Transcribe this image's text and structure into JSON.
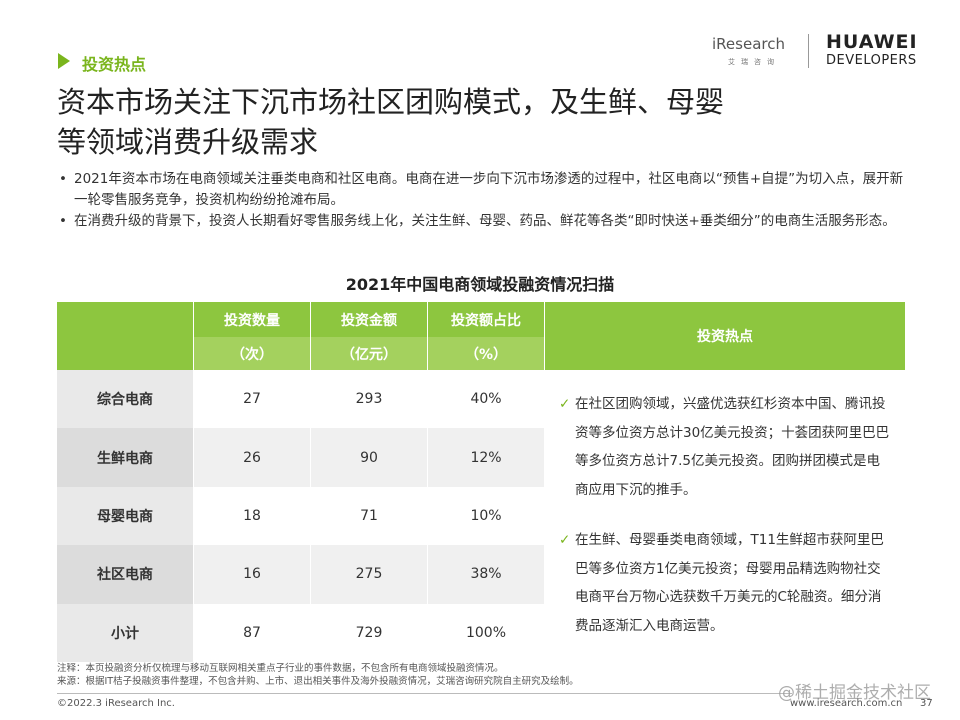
{
  "header": {
    "logo": "iResearch",
    "logo_sub": "艾瑞咨询",
    "brand": "HUAWEI",
    "brand_sub": "DEVELOPERS",
    "section": "投资热点",
    "title": [
      "资本市场关注下沉市场社区团购模式，及生鲜、母婴",
      "等领域消费升级需求"
    ]
  },
  "bullets": [
    "2021年资本市场在电商领域关注垂类电商和社区电商。电商在进一步向下沉市场渗透的过程中，社区电商以“预售+自提”为切入点，展开新一轮零售服务竞争，投资机构纷纷抢滩布局。",
    "在消费升级的背景下，投资人长期看好零售服务线上化，关注生鲜、母婴、药品、鲜花等各类“即时快送+垂类细分”的电商生活服务形态。"
  ],
  "table": {
    "title": "2021年中国电商领域投融资情况扫描",
    "columns": [
      "投资数量",
      "投资金额",
      "投资额占比",
      "投资热点"
    ],
    "units": [
      "（次）",
      "（亿元）",
      "（%）"
    ],
    "rows": [
      [
        "综合电商",
        "27",
        "293",
        "40%"
      ],
      [
        "生鲜电商",
        "26",
        "90",
        "12%"
      ],
      [
        "母婴电商",
        "18",
        "71",
        "10%"
      ],
      [
        "社区电商",
        "16",
        "275",
        "38%"
      ],
      [
        "小计",
        "87",
        "729",
        "100%"
      ]
    ],
    "hotspots": [
      "在社区团购领域，兴盛优选获红杉资本中国、腾讯投资等多位资方总计30亿美元投资；十荟团获阿里巴巴等多位资方总计7.5亿美元投资。团购拼团模式是电商应用下沉的推手。",
      "在生鲜、母婴垂类电商领域，T11生鲜超市获阿里巴巴等多位资方1亿美元投资；母婴用品精选购物社交电商平台万物心选获数千万美元的C轮融资。细分消费品逐渐汇入电商运营。"
    ]
  },
  "footer": {
    "notes": [
      "注释：本页投融资分析仅梳理与移动互联网相关重点子行业的事件数据，不包含所有电商领域投融资情况。",
      "来源：根据IT桔子投融资事件整理，不包含并购、上市、退出相关事件及海外投融资情况，艾瑞咨询研究院自主研究及绘制。"
    ],
    "watermark": "@稀土掘金技术社区",
    "copyright": "©2022.3 iResearch Inc.",
    "website": "www.iresearch.com.cn",
    "page": "37"
  }
}
